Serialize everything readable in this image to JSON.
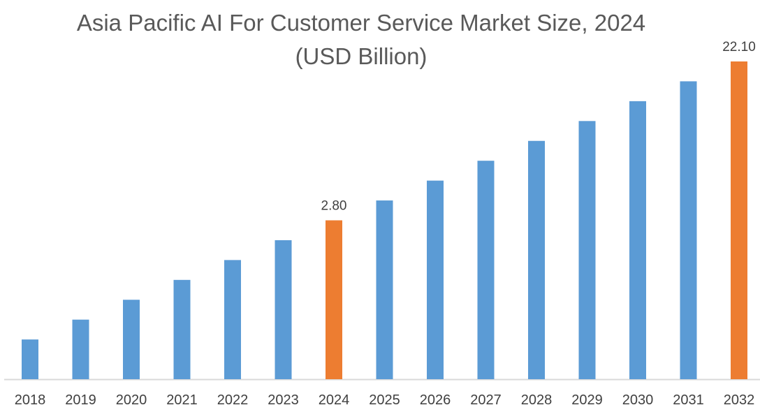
{
  "chart_data": {
    "type": "bar",
    "title": "Asia Pacific AI For Customer Service Market Size, 2024",
    "subtitle": "(USD Billion)",
    "xlabel": "",
    "ylabel": "",
    "categories": [
      "2018",
      "2019",
      "2020",
      "2021",
      "2022",
      "2023",
      "2024",
      "2025",
      "2026",
      "2027",
      "2028",
      "2029",
      "2030",
      "2031",
      "2032"
    ],
    "values": [
      null,
      null,
      null,
      null,
      null,
      null,
      2.8,
      null,
      null,
      null,
      null,
      null,
      null,
      null,
      22.1
    ],
    "data_labels": [
      "",
      "",
      "",
      "",
      "",
      "",
      "2.80",
      "",
      "",
      "",
      "",
      "",
      "",
      "",
      "22.10"
    ],
    "relative_heights": [
      0.125,
      0.1875,
      0.25,
      0.3125,
      0.375,
      0.4375,
      0.5,
      0.5625,
      0.625,
      0.6875,
      0.75,
      0.8125,
      0.875,
      0.9375,
      1.0
    ],
    "highlight": [
      "2024",
      "2032"
    ],
    "grid": false,
    "legend": "none",
    "colors": {
      "bar": "#5b9bd5",
      "highlight": "#ed7d31",
      "axis": "#d9d9d9"
    }
  }
}
